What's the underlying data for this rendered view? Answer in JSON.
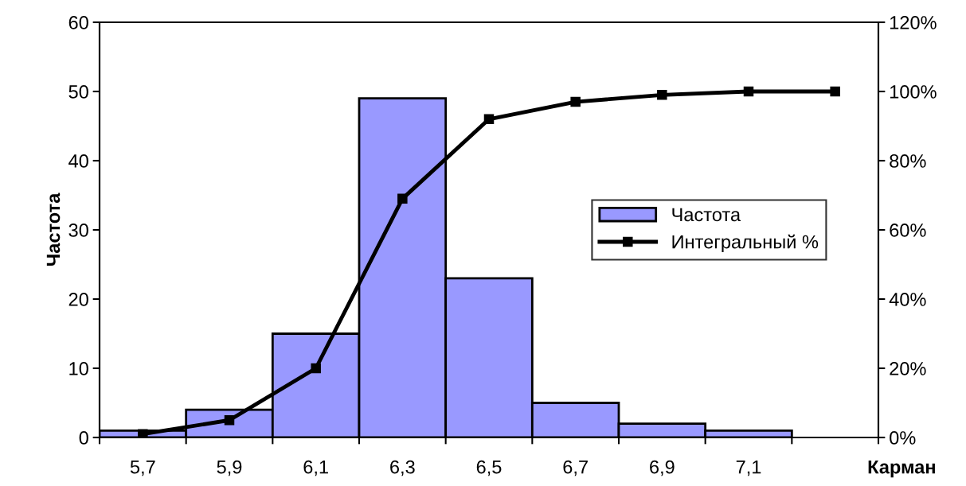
{
  "chart_data": {
    "type": "bar",
    "xlabel": "Карман",
    "ylabel": "Частота",
    "categories": [
      "5,7",
      "5,9",
      "6,1",
      "6,3",
      "6,5",
      "6,7",
      "6,9",
      "7,1",
      null
    ],
    "series": [
      {
        "name": "Частота",
        "color": "#9999ff",
        "values": [
          1,
          4,
          15,
          49,
          23,
          5,
          2,
          1,
          null
        ]
      },
      {
        "name": "Интегральный %",
        "type": "line",
        "axis": "y2",
        "color": "#000000",
        "marker": "square",
        "values": [
          1,
          5,
          20,
          69,
          92,
          97,
          99,
          100,
          100
        ]
      }
    ],
    "ylim": [
      0,
      60
    ],
    "yticks": [
      0,
      10,
      20,
      30,
      40,
      50,
      60
    ],
    "y2lim": [
      0,
      120
    ],
    "y2ticks": [
      {
        "value": 0,
        "label": "0%"
      },
      {
        "value": 20,
        "label": "20%"
      },
      {
        "value": 40,
        "label": "40%"
      },
      {
        "value": 60,
        "label": "60%"
      },
      {
        "value": 80,
        "label": "80%"
      },
      {
        "value": 100,
        "label": "100%"
      },
      {
        "value": 120,
        "label": "120%"
      }
    ],
    "legend": "right",
    "grid": false
  }
}
